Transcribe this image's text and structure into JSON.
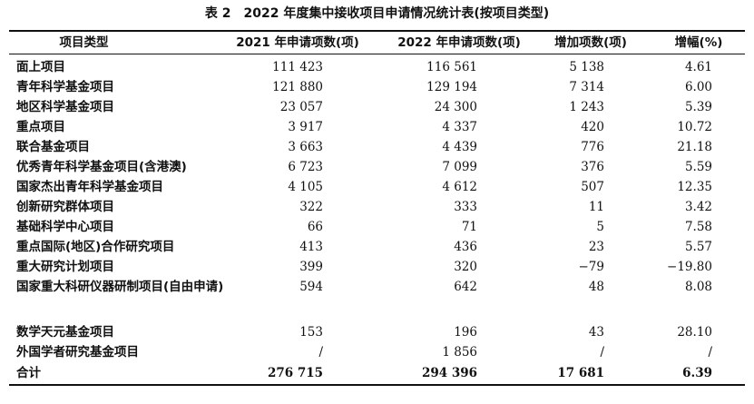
{
  "table": {
    "title_label": "表 2",
    "title_text": "2022 年度集中接收项目申请情况统计表(按项目类型)",
    "headers": [
      "项目类型",
      "2021 年申请项数(项)",
      "2022 年申请项数(项)",
      "增加项数(项)",
      "增幅(%)"
    ],
    "rows": [
      {
        "name": "面上项目",
        "y2021": "111 423",
        "y2022": "116 561",
        "increase": "5 138",
        "growth": "4.61"
      },
      {
        "name": "青年科学基金项目",
        "y2021": "121 880",
        "y2022": "129 194",
        "increase": "7 314",
        "growth": "6.00"
      },
      {
        "name": "地区科学基金项目",
        "y2021": "23 057",
        "y2022": "24 300",
        "increase": "1 243",
        "growth": "5.39"
      },
      {
        "name": "重点项目",
        "y2021": "3 917",
        "y2022": "4 337",
        "increase": "420",
        "growth": "10.72"
      },
      {
        "name": "联合基金项目",
        "y2021": "3 663",
        "y2022": "4 439",
        "increase": "776",
        "growth": "21.18"
      },
      {
        "name": "优秀青年科学基金项目(含港澳)",
        "y2021": "6 723",
        "y2022": "7 099",
        "increase": "376",
        "growth": "5.59"
      },
      {
        "name": "国家杰出青年科学基金项目",
        "y2021": "4 105",
        "y2022": "4 612",
        "increase": "507",
        "growth": "12.35"
      },
      {
        "name": "创新研究群体项目",
        "y2021": "322",
        "y2022": "333",
        "increase": "11",
        "growth": "3.42"
      },
      {
        "name": "基础科学中心项目",
        "y2021": "66",
        "y2022": "71",
        "increase": "5",
        "growth": "7.58"
      },
      {
        "name": "重点国际(地区)合作研究项目",
        "y2021": "413",
        "y2022": "436",
        "increase": "23",
        "growth": "5.57"
      },
      {
        "name": "重大研究计划项目",
        "y2021": "399",
        "y2022": "320",
        "increase": "−79",
        "growth": "−19.80"
      },
      {
        "name": "国家重大科研仪器研制项目(自由申请)",
        "y2021": "594",
        "y2022": "642",
        "increase": "48",
        "growth": "8.08"
      },
      {
        "name": "数学天元基金项目",
        "y2021": "153",
        "y2022": "196",
        "increase": "43",
        "growth": "28.10"
      },
      {
        "name": "外国学者研究基金项目",
        "y2021": "/",
        "y2022": "1 856",
        "increase": "/",
        "growth": "/"
      }
    ],
    "total": {
      "name": "合计",
      "y2021": "276 715",
      "y2022": "294 396",
      "increase": "17 681",
      "growth": "6.39"
    }
  }
}
